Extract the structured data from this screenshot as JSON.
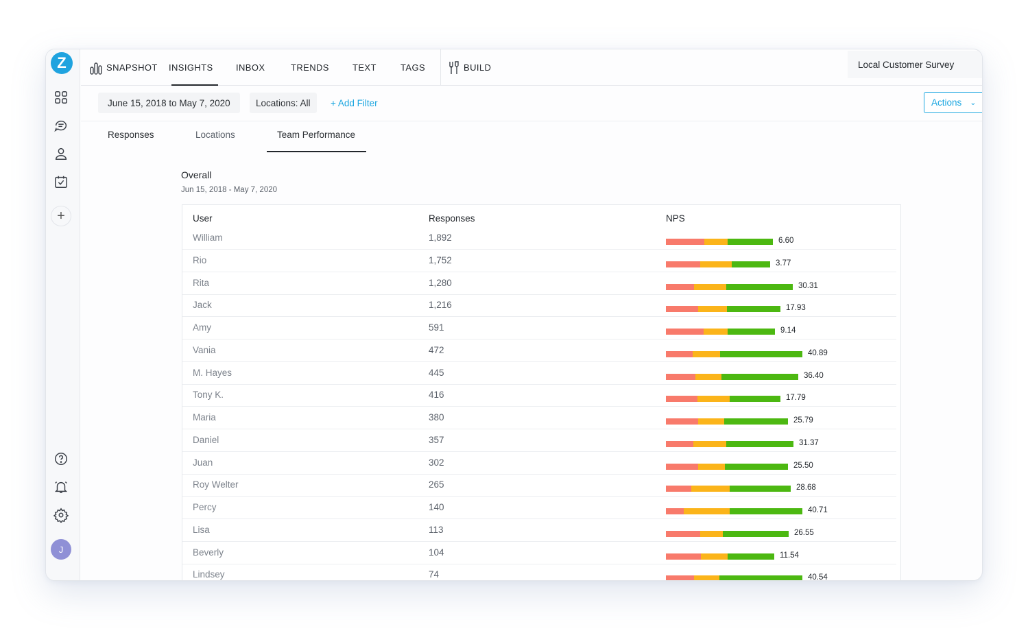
{
  "sidebar": {
    "logo": "Z",
    "icons": [
      "dashboard-icon",
      "chat-icon",
      "user-icon",
      "calendar-check-icon"
    ],
    "add": "+",
    "bottom_icons": [
      "help-icon",
      "bell-icon",
      "settings-icon"
    ],
    "avatar": "J"
  },
  "nav": {
    "snapshot": "SNAPSHOT",
    "insights": "INSIGHTS",
    "inbox": "INBOX",
    "trends": "TRENDS",
    "text": "TEXT",
    "tags": "TAGS",
    "build": "BUILD",
    "survey": "Local Customer Survey"
  },
  "filters": {
    "date_range": "June 15, 2018 to May 7, 2020",
    "locations": "Locations: All",
    "add_filter": "+ Add Filter",
    "actions": "Actions"
  },
  "subtabs": {
    "responses": "Responses",
    "locations": "Locations",
    "team_performance": "Team Performance"
  },
  "overall": {
    "title": "Overall",
    "range": "Jun 15, 2018 - May 7, 2020"
  },
  "table": {
    "headers": {
      "user": "User",
      "responses": "Responses",
      "nps": "NPS"
    },
    "colors": {
      "detractor": "#f87a6b",
      "passive": "#fbb41a",
      "promoter": "#4cb811"
    },
    "rows": [
      {
        "user": "William",
        "responses": "1,892",
        "nps": "6.60",
        "segments": [
          56,
          34,
          66
        ]
      },
      {
        "user": "Rio",
        "responses": "1,752",
        "nps": "3.77",
        "segments": [
          50,
          46,
          56
        ]
      },
      {
        "user": "Rita",
        "responses": "1,280",
        "nps": "30.31",
        "segments": [
          41,
          47,
          97
        ]
      },
      {
        "user": "Jack",
        "responses": "1,216",
        "nps": "17.93",
        "segments": [
          47,
          42,
          78
        ]
      },
      {
        "user": "Amy",
        "responses": "591",
        "nps": "9.14",
        "segments": [
          55,
          35,
          69
        ]
      },
      {
        "user": "Vania",
        "responses": "472",
        "nps": "40.89",
        "segments": [
          39,
          40,
          120
        ]
      },
      {
        "user": "M. Hayes",
        "responses": "445",
        "nps": "36.40",
        "segments": [
          43,
          38,
          112
        ]
      },
      {
        "user": "Tony K.",
        "responses": "416",
        "nps": "17.79",
        "segments": [
          46,
          47,
          74
        ]
      },
      {
        "user": "Maria",
        "responses": "380",
        "nps": "25.79",
        "segments": [
          47,
          38,
          93
        ]
      },
      {
        "user": "Daniel",
        "responses": "357",
        "nps": "31.37",
        "segments": [
          40,
          48,
          98
        ]
      },
      {
        "user": "Juan",
        "responses": "302",
        "nps": "25.50",
        "segments": [
          47,
          39,
          92
        ]
      },
      {
        "user": "Roy Welter",
        "responses": "265",
        "nps": "28.68",
        "segments": [
          37,
          56,
          89
        ]
      },
      {
        "user": "Percy",
        "responses": "140",
        "nps": "40.71",
        "segments": [
          26,
          67,
          106
        ]
      },
      {
        "user": "Lisa",
        "responses": "113",
        "nps": "26.55",
        "segments": [
          50,
          33,
          96
        ]
      },
      {
        "user": "Beverly",
        "responses": "104",
        "nps": "11.54",
        "segments": [
          51,
          39,
          68
        ]
      },
      {
        "user": "Lindsey",
        "responses": "74",
        "nps": "40.54",
        "segments": [
          41,
          37,
          121
        ]
      }
    ]
  }
}
